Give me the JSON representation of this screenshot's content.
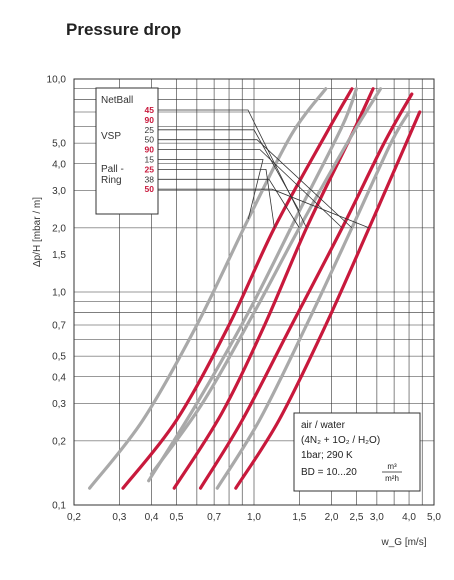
{
  "chart_data": {
    "type": "line",
    "title": "Pressure drop",
    "xlabel": "w_G [m/s]",
    "ylabel": "Δp/H [mbar / m]",
    "x_scale": "log",
    "y_scale": "log",
    "xlim": [
      0.2,
      5.0
    ],
    "ylim": [
      0.1,
      10.0
    ],
    "grid": true,
    "x_ticks": [
      "0,2",
      "0,3",
      "0,4",
      "0,5",
      "0,7",
      "1,0",
      "1,5",
      "2,0",
      "2,5",
      "3,0",
      "4,0",
      "5,0"
    ],
    "y_ticks": [
      "0,1",
      "0,2",
      "0,3",
      "0,4",
      "0,5",
      "0,7",
      "1,0",
      "1,5",
      "2,0",
      "3,0",
      "4,0",
      "5,0",
      "10,0"
    ],
    "legend": {
      "groups": [
        {
          "name": "NetBall",
          "entries": [
            {
              "label": "45",
              "color": "red"
            },
            {
              "label": "90",
              "color": "red"
            }
          ]
        },
        {
          "name": "VSP",
          "entries": [
            {
              "label": "25",
              "color": "gray"
            },
            {
              "label": "50",
              "color": "gray"
            },
            {
              "label": "90",
              "color": "red"
            }
          ]
        },
        {
          "name": "Pall - Ring",
          "entries": [
            {
              "label": "15",
              "color": "gray"
            },
            {
              "label": "25",
              "color": "red"
            },
            {
              "label": "38",
              "color": "gray"
            },
            {
              "label": "50",
              "color": "red"
            }
          ]
        }
      ]
    },
    "series": [
      {
        "group": "Pall - Ring",
        "label": "15",
        "color": "gray",
        "x": [
          0.23,
          0.37,
          0.6,
          0.95,
          1.4,
          1.9
        ],
        "y": [
          0.12,
          0.25,
          0.7,
          2.2,
          5.5,
          9.0
        ]
      },
      {
        "group": "VSP",
        "label": "25",
        "color": "gray",
        "x": [
          0.39,
          0.6,
          0.95,
          1.5,
          2.2,
          2.5
        ],
        "y": [
          0.13,
          0.3,
          0.8,
          2.4,
          6.0,
          9.0
        ]
      },
      {
        "group": "Pall - Ring",
        "label": "25",
        "color": "red",
        "x": [
          0.31,
          0.5,
          0.8,
          1.2,
          1.9,
          2.4
        ],
        "y": [
          0.12,
          0.25,
          0.7,
          2.0,
          5.5,
          9.0
        ]
      },
      {
        "group": "NetBall",
        "label": "45",
        "color": "red",
        "x": [
          0.49,
          0.75,
          1.1,
          1.6,
          2.4,
          2.9
        ],
        "y": [
          0.12,
          0.27,
          0.7,
          2.0,
          5.5,
          9.0
        ]
      },
      {
        "group": "Pall - Ring",
        "label": "38",
        "color": "gray",
        "x": [
          0.4,
          0.63,
          1.0,
          1.5,
          2.3,
          3.1
        ],
        "y": [
          0.14,
          0.3,
          0.8,
          2.0,
          5.0,
          9.0
        ]
      },
      {
        "group": "VSP",
        "label": "90",
        "color": "red",
        "x": [
          0.62,
          0.9,
          1.4,
          2.2,
          3.2,
          4.1
        ],
        "y": [
          0.12,
          0.25,
          0.7,
          2.0,
          5.0,
          8.5
        ]
      },
      {
        "group": "VSP",
        "label": "50",
        "color": "gray",
        "x": [
          0.72,
          1.05,
          1.6,
          2.4,
          3.4,
          4.0
        ],
        "y": [
          0.12,
          0.25,
          0.7,
          2.0,
          5.0,
          7.0
        ]
      },
      {
        "group": "Pall - Ring",
        "label": "50",
        "color": "red",
        "x": [
          0.85,
          1.25,
          1.9,
          2.8,
          3.9,
          4.4
        ],
        "y": [
          0.12,
          0.25,
          0.7,
          2.0,
          5.0,
          7.0
        ]
      }
    ],
    "annotation": {
      "line1": "air / water",
      "line2": "(4N₂ + 1O₂ / H₂O)",
      "line3": "1bar; 290 K",
      "line4_prefix": "BD = 10...20",
      "line4_num": "m³",
      "line4_den": "m²h"
    }
  },
  "colors": {
    "red": "#c8193c",
    "gray": "#a9a9a9",
    "grid": "#333333",
    "text": "#222222"
  }
}
